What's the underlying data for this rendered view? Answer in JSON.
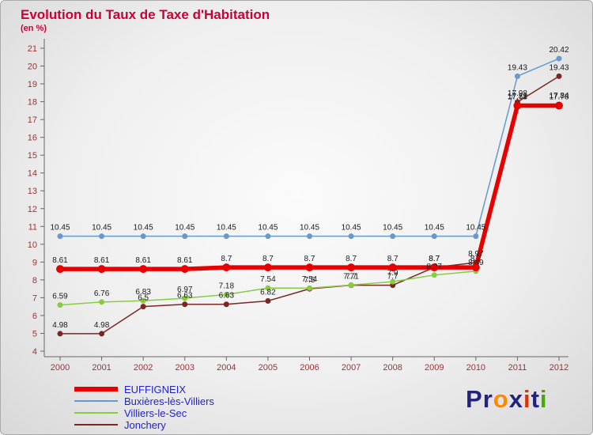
{
  "header": {
    "title": "Evolution du Taux de Taxe d'Habitation",
    "subtitle": "(en %)"
  },
  "colors": {
    "title": "#cc0033",
    "axis_text": "#993333",
    "legend_text": "#2222cc",
    "point_label": "#1a1a1a",
    "background": "#e8e8e8"
  },
  "chart_data": {
    "type": "line",
    "x": [
      2000,
      2001,
      2002,
      2003,
      2004,
      2005,
      2006,
      2007,
      2008,
      2009,
      2010,
      2011,
      2012
    ],
    "ylim": [
      4,
      21
    ],
    "ytick_step": 1,
    "grid": false,
    "legend_position": "bottom-left",
    "point_labels_shown": true,
    "series": [
      {
        "name": "EUFFIGNEIX",
        "color": "#e60000",
        "line_width": 5.5,
        "point_radius": 5,
        "values": [
          8.61,
          8.61,
          8.61,
          8.61,
          8.7,
          8.7,
          8.7,
          8.7,
          8.7,
          8.7,
          8.7,
          17.78,
          17.78
        ]
      },
      {
        "name": "Buxières-lès-Villiers",
        "color": "#6699cc",
        "line_width": 1.5,
        "point_radius": 3.5,
        "values": [
          10.45,
          10.45,
          10.45,
          10.45,
          10.45,
          10.45,
          10.45,
          10.45,
          10.45,
          10.45,
          10.45,
          19.43,
          20.42
        ]
      },
      {
        "name": "Villiers-le-Sec",
        "color": "#88cc44",
        "line_width": 1.5,
        "point_radius": 3.5,
        "values": [
          6.59,
          6.76,
          6.83,
          6.97,
          7.18,
          7.54,
          7.54,
          7.71,
          7.9,
          8.27,
          8.49,
          17.81,
          17.84
        ]
      },
      {
        "name": "Jonchery",
        "color": "#7a2622",
        "line_width": 1.5,
        "point_radius": 3.5,
        "values": [
          4.98,
          4.98,
          6.5,
          6.63,
          6.63,
          6.82,
          7.5,
          7.7,
          7.7,
          8.7,
          8.97,
          17.98,
          19.43
        ]
      }
    ],
    "title": "Evolution du Taux de Taxe d'Habitation",
    "ylabel": "en %"
  },
  "logo": {
    "text": "Proxiti",
    "letters": [
      {
        "ch": "P",
        "color": "#22227f"
      },
      {
        "ch": "r",
        "color": "#22227f"
      },
      {
        "ch": "o",
        "color": "#ff8800"
      },
      {
        "ch": "x",
        "color": "#22227f"
      },
      {
        "ch": "i",
        "color": "#dd3300"
      },
      {
        "ch": "t",
        "color": "#22227f"
      },
      {
        "ch": "i",
        "color": "#44aa00"
      }
    ]
  }
}
